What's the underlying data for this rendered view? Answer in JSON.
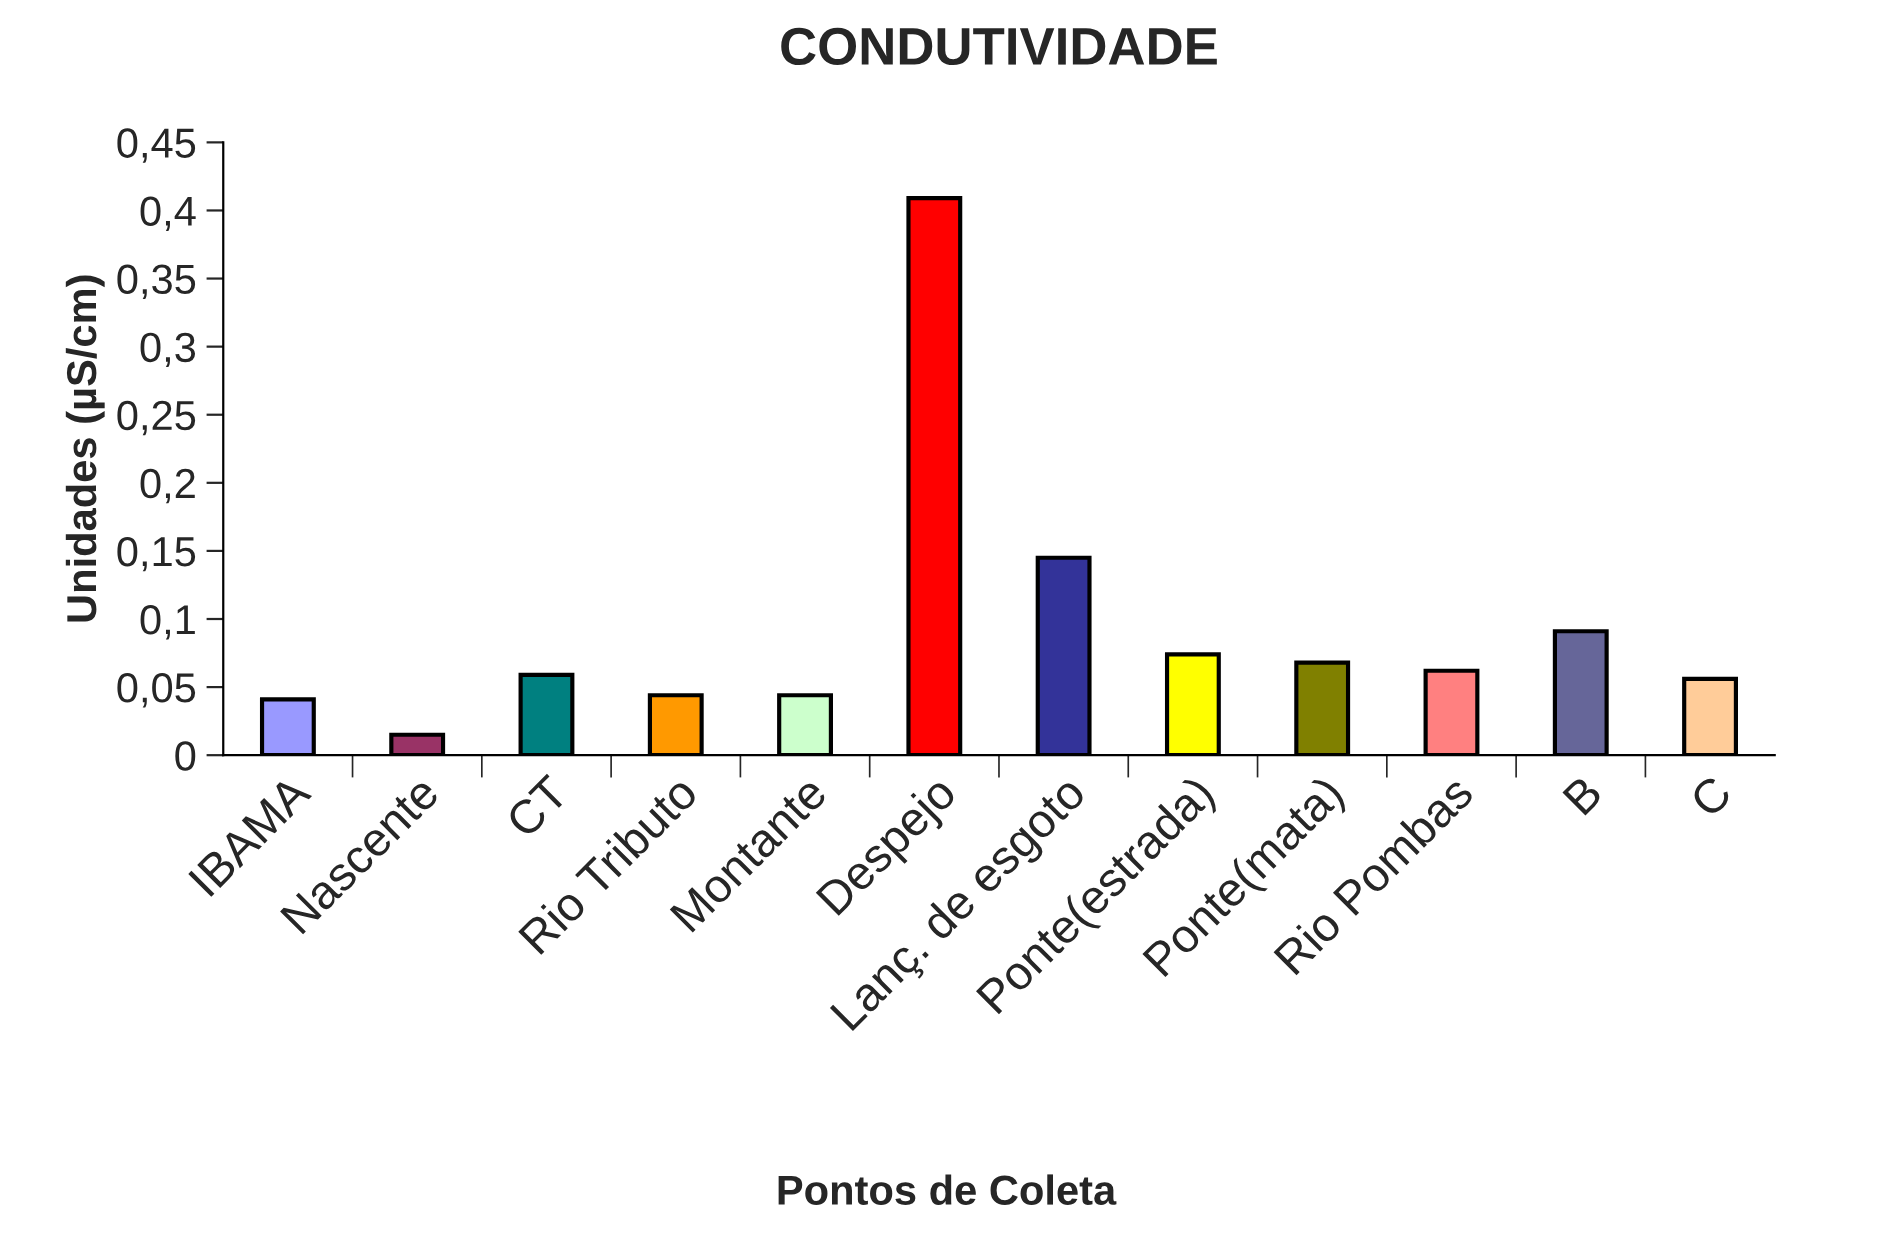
{
  "chart_data": {
    "type": "bar",
    "title": "CONDUTIVIDADE",
    "xlabel": "Pontos de Coleta",
    "ylabel": "Unidades (µS/cm)",
    "categories": [
      "IBAMA",
      "Nascente",
      "CT",
      "Rio Tributo",
      "Montante",
      "Despejo",
      "Lanç. de esgoto",
      "Ponte(estrada)",
      "Ponte(mata)",
      "Rio Pombas",
      "B",
      "C"
    ],
    "values": [
      0.041,
      0.015,
      0.059,
      0.044,
      0.044,
      0.409,
      0.145,
      0.074,
      0.068,
      0.062,
      0.091,
      0.056
    ],
    "colors": [
      "#9999ff",
      "#993366",
      "#008080",
      "#ff9900",
      "#ccffcc",
      "#ff0000",
      "#333399",
      "#ffff00",
      "#808000",
      "#ff8080",
      "#666699",
      "#ffcc99"
    ],
    "ylim": [
      0,
      0.45
    ],
    "yticks": [
      0,
      {
        "value": 0.05,
        "label": "0,05"
      },
      {
        "value": 0.1,
        "label": "0,1"
      },
      {
        "value": 0.15,
        "label": "0,15"
      },
      {
        "value": 0.2,
        "label": "0,2"
      },
      {
        "value": 0.25,
        "label": "0,25"
      },
      {
        "value": 0.3,
        "label": "0,3"
      },
      {
        "value": 0.35,
        "label": "0,35"
      },
      {
        "value": 0.4,
        "label": "0,4"
      },
      {
        "value": 0.45,
        "label": "0,45"
      }
    ],
    "grid": false,
    "legend": false
  }
}
